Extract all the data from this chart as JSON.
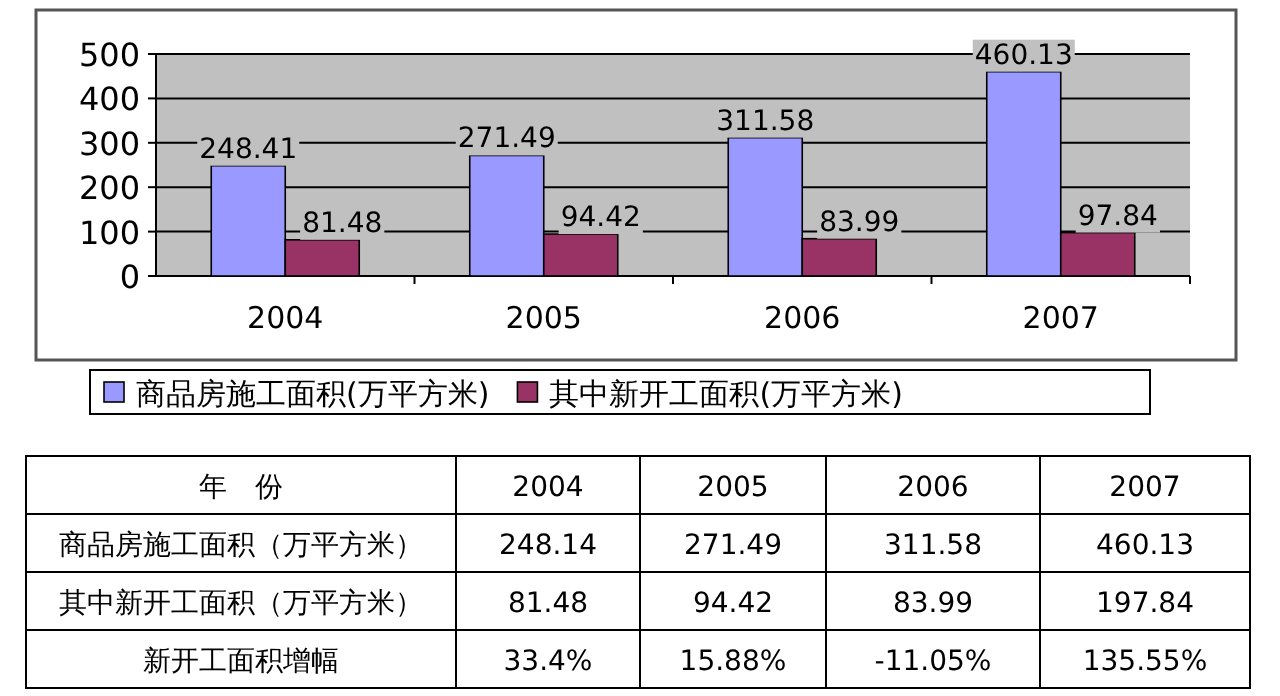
{
  "chart_data": {
    "type": "bar",
    "categories": [
      "2004",
      "2005",
      "2006",
      "2007"
    ],
    "series": [
      {
        "name": "商品房施工面积(万平方米)",
        "color": "#9999ff",
        "values": [
          248.41,
          271.49,
          311.58,
          460.13
        ],
        "value_labels": [
          "248.41",
          "271.49",
          "311.58",
          "460.13"
        ]
      },
      {
        "name": "其中新开工面积(万平方米)",
        "color": "#993366",
        "values": [
          81.48,
          94.42,
          83.99,
          97.84
        ],
        "value_labels": [
          "81.48",
          "94.42",
          "83.99",
          "97.84"
        ]
      }
    ],
    "ylim": [
      0,
      500
    ],
    "yticks": [
      0,
      100,
      200,
      300,
      400,
      500
    ],
    "grid": "y",
    "legend": "bottom",
    "annotations": [
      "年　份",
      "2004",
      "2005",
      "2006",
      "2007",
      "商品房施工面积（万平方米）",
      "248.14",
      "271.49",
      "311.58",
      "460.13",
      "其中新开工面积（万平方米）",
      "81.48",
      "94.42",
      "83.99",
      "197.84",
      "新开工面积增幅",
      "33.4%",
      "15.88%",
      "-11.05%",
      "135.55%"
    ]
  }
}
